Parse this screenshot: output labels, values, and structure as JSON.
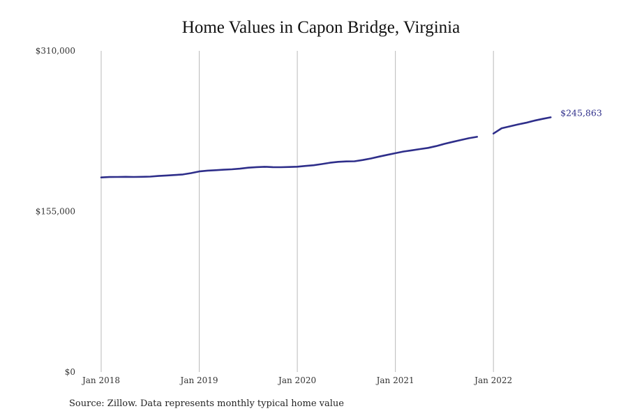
{
  "chart_data": {
    "type": "line",
    "title": "Home Values in Capon Bridge, Virginia",
    "source": "Source: Zillow. Data represents monthly typical home value",
    "x_tick_labels": [
      "Jan 2018",
      "Jan 2019",
      "Jan 2020",
      "Jan 2021",
      "Jan 2022"
    ],
    "y_tick_labels": [
      "$310,000",
      "$155,000",
      "$0"
    ],
    "y_ticks": [
      310000,
      155000,
      0
    ],
    "ylim": [
      0,
      310000
    ],
    "xlim": [
      "2018-01",
      "2022-12"
    ],
    "grid": "vertical at each January",
    "line_color": "#2e2e8a",
    "end_label": "$245,863",
    "series": [
      {
        "segments": [
          {
            "x": [
              "2018-01",
              "2018-02",
              "2018-03",
              "2018-04",
              "2018-05",
              "2018-06",
              "2018-07",
              "2018-08",
              "2018-09",
              "2018-10",
              "2018-11",
              "2018-12",
              "2019-01",
              "2019-02",
              "2019-03",
              "2019-04",
              "2019-05",
              "2019-06",
              "2019-07",
              "2019-08",
              "2019-09",
              "2019-10",
              "2019-11",
              "2019-12",
              "2020-01",
              "2020-02",
              "2020-03",
              "2020-04",
              "2020-05",
              "2020-06",
              "2020-07",
              "2020-08",
              "2020-09",
              "2020-10",
              "2020-11",
              "2020-12",
              "2021-01",
              "2021-02",
              "2021-03",
              "2021-04",
              "2021-05",
              "2021-06",
              "2021-07",
              "2021-08",
              "2021-09",
              "2021-10",
              "2021-11"
            ],
            "y": [
              187800,
              188200,
              188300,
              188400,
              188300,
              188400,
              188600,
              189200,
              189700,
              190200,
              190700,
              192000,
              193600,
              194400,
              194800,
              195300,
              195700,
              196300,
              197200,
              197800,
              198100,
              197800,
              197700,
              197900,
              198200,
              198900,
              199600,
              200700,
              202000,
              202900,
              203300,
              203400,
              204600,
              206100,
              207900,
              209600,
              211200,
              212800,
              214000,
              215200,
              216300,
              218100,
              220200,
              222100,
              223900,
              225700,
              227000
            ]
          },
          {
            "x": [
              "2022-01",
              "2022-02",
              "2022-03",
              "2022-04",
              "2022-05",
              "2022-06",
              "2022-07",
              "2022-08"
            ],
            "y": [
              230200,
              235300,
              237100,
              239000,
              240600,
              242600,
              244300,
              245863
            ]
          }
        ]
      }
    ]
  }
}
